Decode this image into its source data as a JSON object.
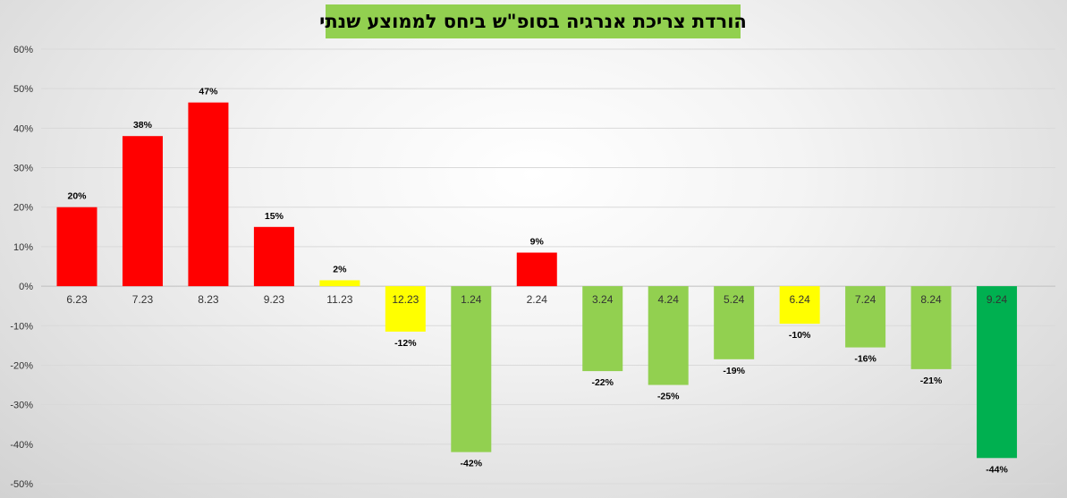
{
  "chart_data": {
    "type": "bar",
    "title": "הורדת צריכת אנרגיה בסופ\"ש ביחס לממוצע שנתי",
    "xlabel": "",
    "ylabel": "",
    "ylim": [
      -50,
      60
    ],
    "y_ticks": [
      "60%",
      "50%",
      "40%",
      "30%",
      "20%",
      "10%",
      "0%",
      "-10%",
      "-20%",
      "-30%",
      "-40%",
      "-50%"
    ],
    "y_tick_values": [
      60,
      50,
      40,
      30,
      20,
      10,
      0,
      -10,
      -20,
      -30,
      -40,
      -50
    ],
    "grid": true,
    "categories": [
      "6.23",
      "7.23",
      "8.23",
      "9.23",
      "11.23",
      "12.23",
      "1.24",
      "2.24",
      "3.24",
      "4.24",
      "5.24",
      "6.24",
      "7.24",
      "8.24",
      "9.24"
    ],
    "values": [
      20,
      38,
      46.5,
      15,
      1.5,
      -11.5,
      -42,
      8.5,
      -21.5,
      -25,
      -18.5,
      -9.5,
      -15.5,
      -21,
      -43.5
    ],
    "data_labels": [
      "20%",
      "38%",
      "47%",
      "15%",
      "2%",
      "-12%",
      "-42%",
      "9%",
      "-22%",
      "-25%",
      "-19%",
      "-10%",
      "-16%",
      "-21%",
      "-44%"
    ],
    "bar_colors": [
      "#ff0000",
      "#ff0000",
      "#ff0000",
      "#ff0000",
      "#ffff00",
      "#ffff00",
      "#92d050",
      "#ff0000",
      "#92d050",
      "#92d050",
      "#92d050",
      "#ffff00",
      "#92d050",
      "#92d050",
      "#00b050"
    ]
  },
  "colors": {
    "title_background": "#92d050",
    "red": "#ff0000",
    "yellow": "#ffff00",
    "light_green": "#92d050",
    "dark_green": "#00b050"
  }
}
